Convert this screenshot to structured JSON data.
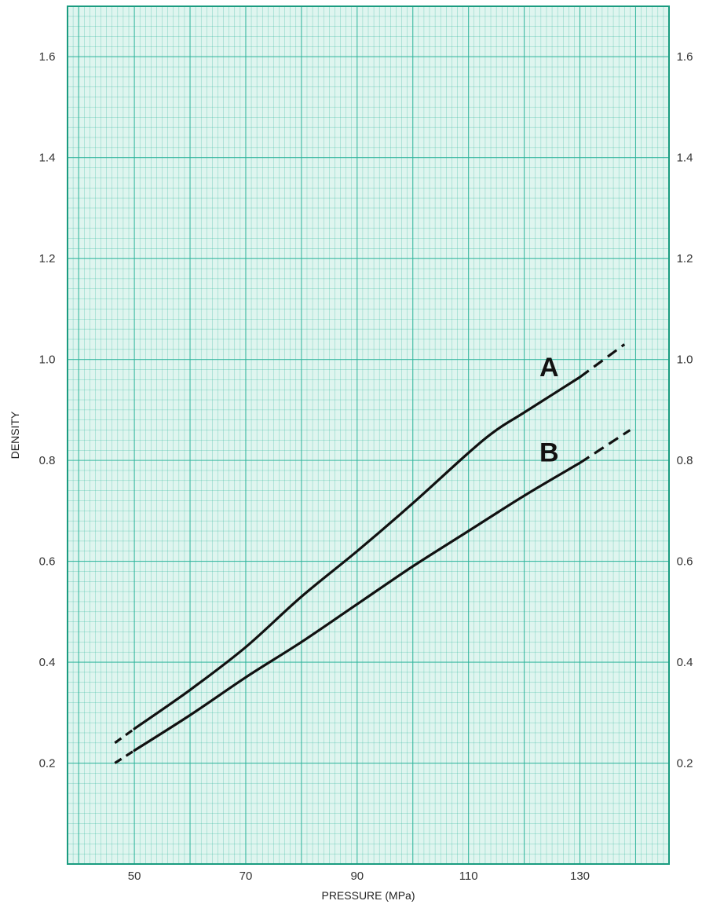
{
  "chart_data": {
    "type": "line",
    "title": "",
    "xlabel": "PRESSURE (MPa)",
    "ylabel": "DENSITY",
    "xlim": [
      38,
      146
    ],
    "ylim": [
      0.0,
      1.7
    ],
    "x_ticks": [
      50,
      70,
      90,
      110,
      130
    ],
    "x_tick_labels": [
      "50",
      "70",
      "90",
      "110",
      "130"
    ],
    "y_ticks": [
      0.2,
      0.4,
      0.6,
      0.8,
      1.0,
      1.2,
      1.4,
      1.6
    ],
    "y_tick_labels_left": [
      "0.2",
      "0.4",
      "0.6",
      "0.8",
      "1.0",
      "1.2",
      "1.4",
      "1.6"
    ],
    "y_tick_labels_right": [
      "0.2",
      "0.4",
      "0.6",
      "0.8",
      "1.0",
      "1.2",
      "1.4",
      "1.6"
    ],
    "grid": true,
    "colors": {
      "grid": "#2bb39a",
      "frame": "#1a9c80",
      "background": "#dff5ef",
      "line": "#111111"
    },
    "series": [
      {
        "name": "A",
        "x": [
          46.5,
          50,
          60,
          70,
          80,
          90,
          100,
          110,
          115,
          120,
          130,
          138
        ],
        "y": [
          0.24,
          0.268,
          0.345,
          0.43,
          0.53,
          0.62,
          0.715,
          0.815,
          0.86,
          0.895,
          0.965,
          1.03
        ],
        "dashed_until_x": 50,
        "dashed_from_x": 130
      },
      {
        "name": "B",
        "x": [
          46.5,
          50,
          60,
          70,
          80,
          90,
          100,
          110,
          120,
          130,
          139
        ],
        "y": [
          0.2,
          0.225,
          0.295,
          0.37,
          0.44,
          0.515,
          0.59,
          0.66,
          0.73,
          0.795,
          0.86
        ],
        "dashed_until_x": 50,
        "dashed_from_x": 130
      }
    ]
  }
}
